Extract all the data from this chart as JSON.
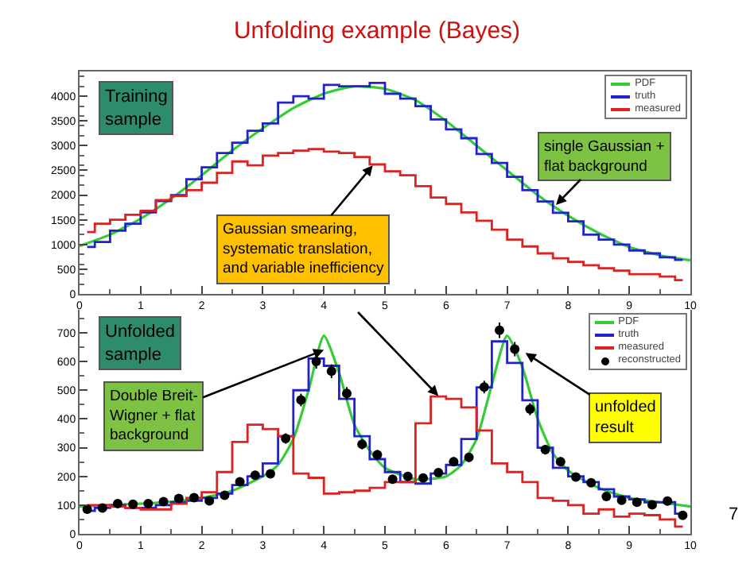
{
  "chart_data": [
    {
      "type": "step",
      "title": "Unfolding example (Bayes)",
      "xlim": [
        0,
        10
      ],
      "ylim": [
        0,
        4500
      ],
      "xticks": [
        0,
        1,
        2,
        3,
        4,
        5,
        6,
        7,
        8,
        9,
        10
      ],
      "yticks": [
        0,
        500,
        1000,
        1500,
        2000,
        2500,
        3000,
        3500,
        4000
      ],
      "grid": false,
      "legend": "top right",
      "x": [
        0.125,
        0.375,
        0.625,
        0.875,
        1.125,
        1.375,
        1.625,
        1.875,
        2.125,
        2.375,
        2.625,
        2.875,
        3.125,
        3.375,
        3.625,
        3.875,
        4.125,
        4.375,
        4.625,
        4.875,
        5.125,
        5.375,
        5.625,
        5.875,
        6.125,
        6.375,
        6.625,
        6.875,
        7.125,
        7.375,
        7.625,
        7.875,
        8.125,
        8.375,
        8.625,
        8.875,
        9.125,
        9.375,
        9.625,
        9.875
      ],
      "series": [
        {
          "name": "PDF",
          "type": "line",
          "color": "#33cc33",
          "x": [
            0,
            0.5,
            1,
            1.5,
            2,
            2.5,
            3,
            3.5,
            4,
            4.5,
            5,
            5.5,
            6,
            6.5,
            7,
            7.5,
            8,
            8.5,
            9,
            9.5,
            10
          ],
          "values": [
            970,
            1200,
            1520,
            1930,
            2400,
            2900,
            3350,
            3760,
            4050,
            4200,
            4150,
            3920,
            3500,
            3000,
            2500,
            2000,
            1580,
            1230,
            950,
            780,
            680
          ]
        },
        {
          "name": "truth",
          "color": "#2222cc",
          "values": [
            950,
            1050,
            1280,
            1420,
            1650,
            1880,
            2000,
            2320,
            2560,
            2850,
            3060,
            3300,
            3450,
            3870,
            4000,
            3950,
            4230,
            4200,
            4200,
            4270,
            4050,
            3950,
            3800,
            3530,
            3330,
            3150,
            2830,
            2650,
            2370,
            2100,
            1870,
            1640,
            1470,
            1200,
            1100,
            1000,
            880,
            820,
            740,
            690
          ]
        },
        {
          "name": "measured",
          "color": "#dd2222",
          "values": [
            1250,
            1420,
            1500,
            1600,
            1680,
            1900,
            1980,
            2100,
            2250,
            2450,
            2680,
            2600,
            2800,
            2850,
            2900,
            2930,
            2880,
            2850,
            2770,
            2620,
            2480,
            2400,
            2180,
            1950,
            1820,
            1650,
            1480,
            1300,
            1100,
            960,
            820,
            720,
            650,
            580,
            520,
            470,
            400,
            400,
            350,
            280
          ]
        }
      ],
      "annotations": [
        "Training\nsample",
        {
          "text": "single Gaussian +\nflat background",
          "x": 7.8,
          "y": 1800
        },
        {
          "text": "Gaussian smearing,\nsystematic translation,\nand variable inefficiency",
          "x": 4.8,
          "y": 2600
        }
      ]
    },
    {
      "type": "step",
      "xlim": [
        0,
        10
      ],
      "ylim": [
        0,
        780
      ],
      "xticks": [
        0,
        1,
        2,
        3,
        4,
        5,
        6,
        7,
        8,
        9,
        10
      ],
      "yticks": [
        0,
        100,
        200,
        300,
        400,
        500,
        600,
        700
      ],
      "grid": false,
      "legend": "top right",
      "x": [
        0.125,
        0.375,
        0.625,
        0.875,
        1.125,
        1.375,
        1.625,
        1.875,
        2.125,
        2.375,
        2.625,
        2.875,
        3.125,
        3.375,
        3.625,
        3.875,
        4.125,
        4.375,
        4.625,
        4.875,
        5.125,
        5.375,
        5.625,
        5.875,
        6.125,
        6.375,
        6.625,
        6.875,
        7.125,
        7.375,
        7.625,
        7.875,
        8.125,
        8.375,
        8.625,
        8.875,
        9.125,
        9.375,
        9.625,
        9.875
      ],
      "series": [
        {
          "name": "PDF",
          "type": "line",
          "color": "#33cc33",
          "x": [
            0,
            0.5,
            1,
            1.5,
            2,
            2.5,
            3,
            3.25,
            3.5,
            3.75,
            4,
            4.25,
            4.5,
            4.75,
            5,
            5.5,
            6,
            6.25,
            6.5,
            6.75,
            7,
            7.25,
            7.5,
            7.75,
            8,
            8.5,
            9,
            9.5,
            10
          ],
          "values": [
            95,
            100,
            105,
            112,
            125,
            150,
            200,
            240,
            330,
            500,
            690,
            560,
            380,
            290,
            230,
            190,
            200,
            240,
            330,
            520,
            690,
            580,
            400,
            280,
            220,
            160,
            125,
            110,
            95
          ]
        },
        {
          "name": "truth",
          "color": "#2222cc",
          "values": [
            80,
            90,
            100,
            90,
            90,
            100,
            110,
            115,
            125,
            140,
            170,
            200,
            245,
            340,
            500,
            610,
            585,
            470,
            340,
            260,
            215,
            180,
            175,
            210,
            240,
            330,
            510,
            670,
            595,
            465,
            300,
            230,
            200,
            180,
            155,
            130,
            120,
            110,
            110,
            70
          ]
        },
        {
          "name": "measured",
          "color": "#dd2222",
          "values": [
            100,
            100,
            95,
            90,
            85,
            85,
            105,
            125,
            145,
            215,
            320,
            380,
            365,
            340,
            210,
            195,
            140,
            145,
            150,
            160,
            180,
            180,
            385,
            478,
            470,
            440,
            360,
            245,
            215,
            180,
            125,
            115,
            100,
            70,
            85,
            60,
            70,
            65,
            50,
            25
          ]
        },
        {
          "name": "reconstructed",
          "type": "scatter",
          "marker": "circle",
          "color": "#000000",
          "values": [
            86,
            90,
            105,
            103,
            105,
            112,
            123,
            126,
            115,
            134,
            181,
            204,
            209,
            332,
            466,
            600,
            566,
            489,
            312,
            275,
            190,
            200,
            194,
            213,
            251,
            266,
            511,
            709,
            643,
            434,
            293,
            251,
            198,
            178,
            130,
            117,
            110,
            101,
            114,
            64
          ],
          "errors": [
            10,
            10,
            10,
            10,
            10,
            10,
            11,
            11,
            11,
            12,
            14,
            15,
            15,
            18,
            22,
            25,
            24,
            22,
            18,
            17,
            14,
            14,
            14,
            15,
            16,
            16,
            22,
            27,
            25,
            21,
            17,
            16,
            14,
            13,
            12,
            11,
            11,
            10,
            11,
            9
          ]
        }
      ],
      "annotations": [
        "Unfolded\nsample",
        {
          "text": "Double Breit-\nWigner + flat\nbackground",
          "x": 4,
          "y": 640
        },
        {
          "text": "unfolded\nresult",
          "x": 7.3,
          "y": 630
        },
        "7"
      ]
    }
  ]
}
